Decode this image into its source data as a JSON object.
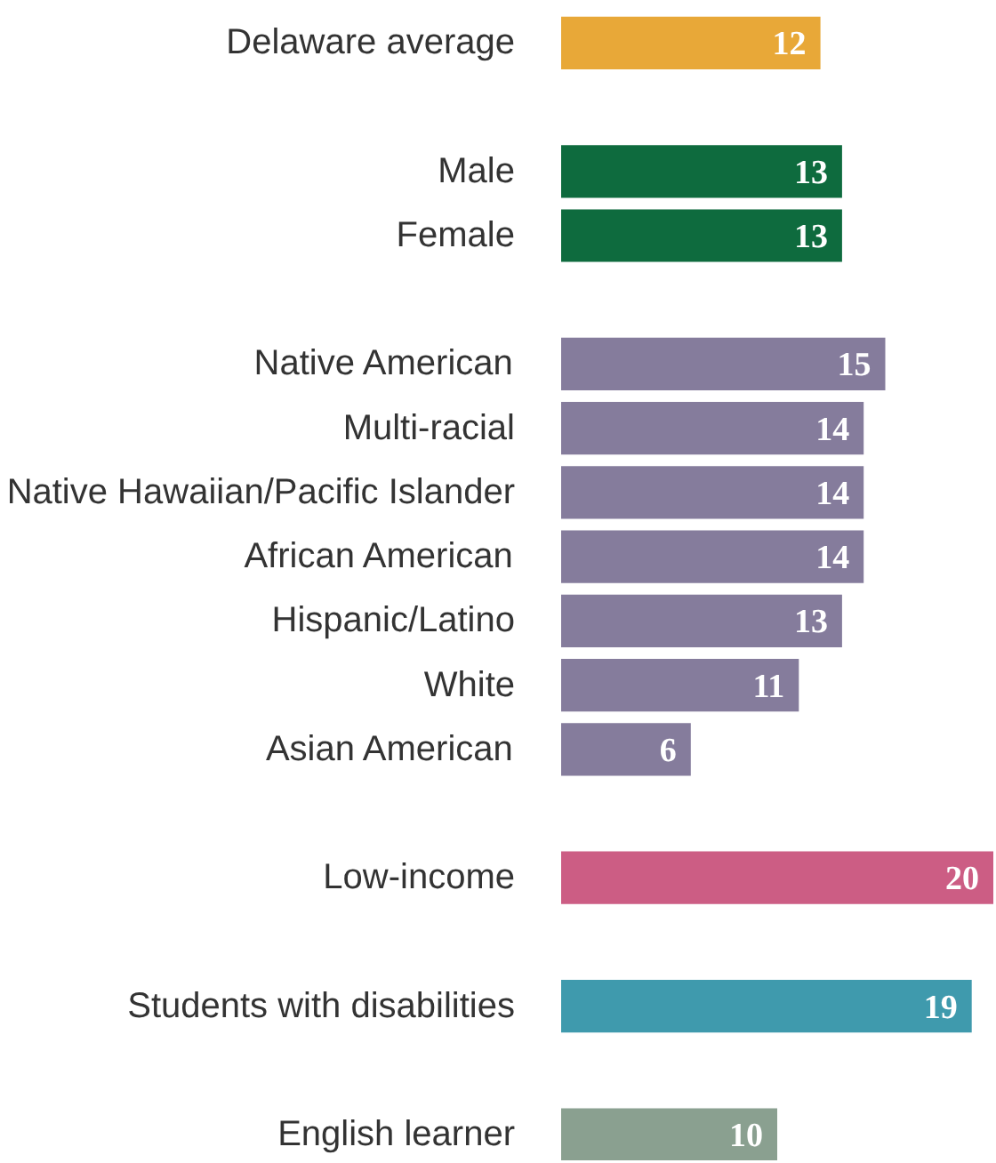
{
  "chart_data": {
    "type": "bar",
    "orientation": "horizontal",
    "data_labels": true,
    "categories": [
      "Delaware average",
      null,
      "Male",
      "Female",
      null,
      "Native American",
      "Multi-racial",
      "Native Hawaiian/Pacific Islander",
      "African American",
      "Hispanic/Latino",
      "White",
      "Asian American",
      null,
      "Low-income",
      null,
      "Students with disabilities",
      null,
      "English learner"
    ],
    "values": [
      12,
      null,
      13,
      13,
      null,
      15,
      14,
      14,
      14,
      13,
      11,
      6,
      null,
      20,
      null,
      19,
      null,
      10
    ],
    "colors": [
      "#e8a838",
      null,
      "#0e6b3e",
      "#0e6b3e",
      null,
      "#857c9c",
      "#857c9c",
      "#857c9c",
      "#857c9c",
      "#857c9c",
      "#857c9c",
      "#857c9c",
      null,
      "#cc5d84",
      null,
      "#3f9aad",
      null,
      "#8aa090"
    ]
  }
}
